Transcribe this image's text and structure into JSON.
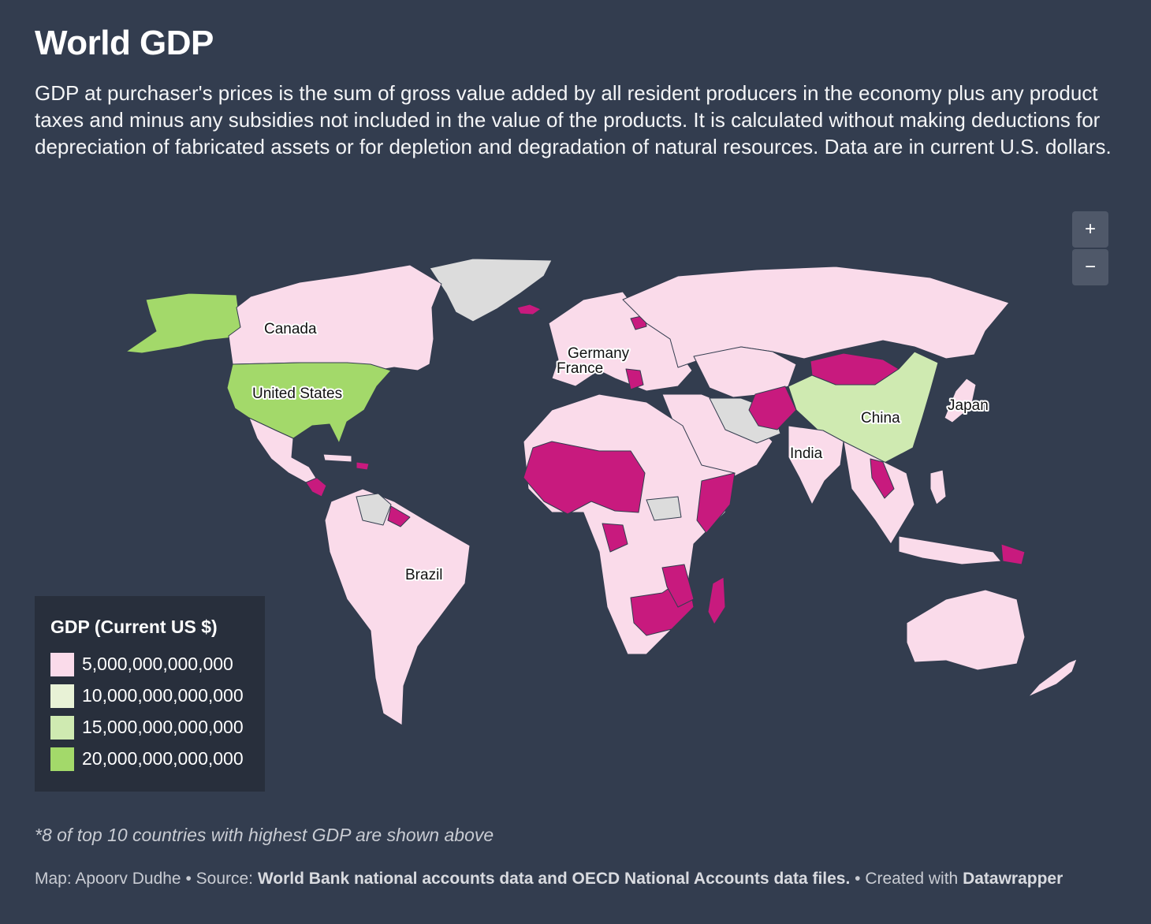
{
  "header": {
    "title": "World GDP",
    "description": "GDP at purchaser's prices is the sum of gross value added by all resident producers in the economy plus any product taxes and minus any subsidies not included in the value of the products. It is calculated without making deductions for depreciation of fabricated assets or for depletion and degradation of natural resources. Data are in current U.S. dollars."
  },
  "zoom": {
    "in_label": "+",
    "out_label": "−"
  },
  "colors": {
    "background": "#333d4f",
    "no_data": "#dcdcdc",
    "low_gdp": "#c81a7e",
    "tier_5t": "#fadbea",
    "tier_10t": "#e8f2d6",
    "tier_15t": "#cfeab1",
    "tier_20t": "#a3d96a"
  },
  "map": {
    "country_labels": [
      "Canada",
      "United States",
      "Germany",
      "France",
      "China",
      "Japan",
      "India",
      "Brazil"
    ]
  },
  "legend": {
    "title": "GDP (Current US $)",
    "items": [
      {
        "label": "5,000,000,000,000",
        "color": "#fadbea"
      },
      {
        "label": "10,000,000,000,000",
        "color": "#e8f2d6"
      },
      {
        "label": "15,000,000,000,000",
        "color": "#cfeab1"
      },
      {
        "label": "20,000,000,000,000",
        "color": "#a3d96a"
      }
    ]
  },
  "note": "*8 of top 10 countries with highest GDP are shown above",
  "footer": {
    "map_by": "Map: Apoorv Dudhe",
    "sep1": " • Source: ",
    "source": "World Bank national accounts data and OECD National Accounts data files.",
    "sep2": " • Created with ",
    "tool": "Datawrapper"
  }
}
